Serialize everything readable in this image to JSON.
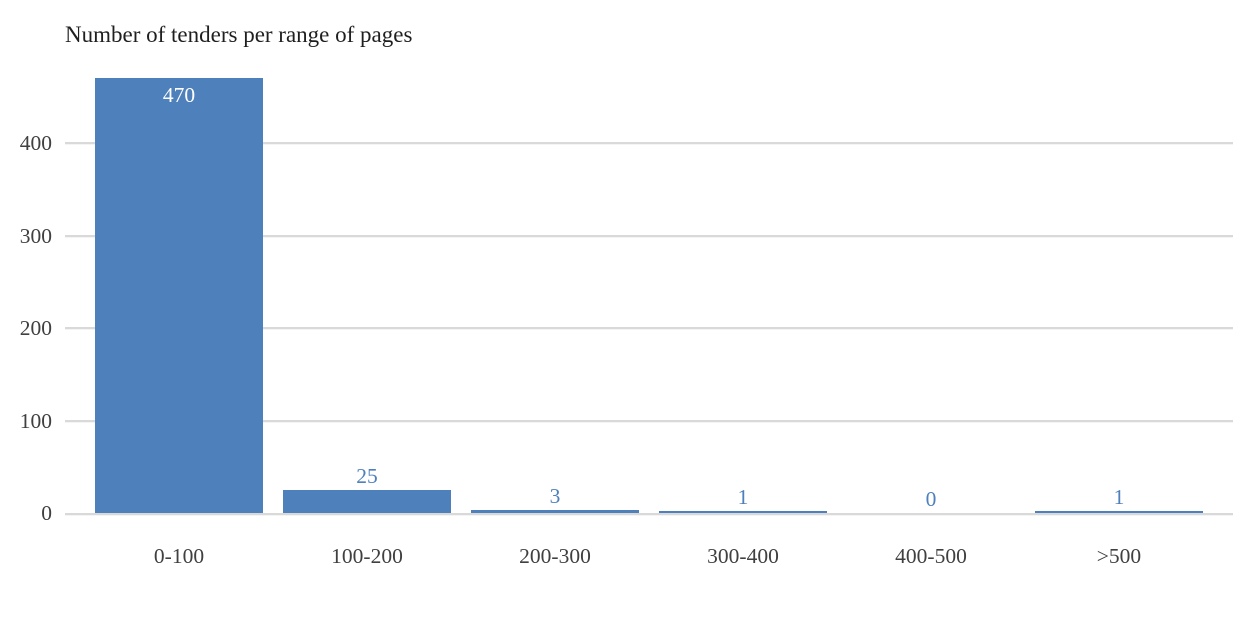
{
  "chart_data": {
    "type": "bar",
    "title": "Number of tenders per range of pages",
    "categories": [
      "0-100",
      "100-200",
      "200-300",
      "300-400",
      "400-500",
      ">500"
    ],
    "values": [
      470,
      25,
      3,
      1,
      0,
      1
    ],
    "xlabel": "",
    "ylabel": "",
    "ylim": [
      0,
      470
    ],
    "yticks": [
      0,
      100,
      200,
      300,
      400
    ],
    "grid": true,
    "legend": false,
    "colors": {
      "bar_fill": "#4e80bc",
      "value_label_inside": "#ffffff",
      "value_label_outside": "#4e80bc",
      "axis_tick_label": "#404040",
      "gridline": "#d9d9d9",
      "title": "#1f1f1f",
      "background": "#ffffff"
    }
  }
}
